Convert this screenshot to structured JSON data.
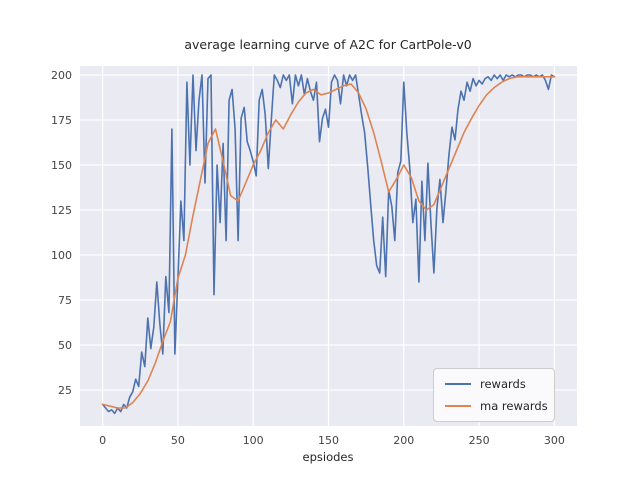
{
  "chart_data": {
    "type": "line",
    "title": "average learning curve of A2C for CartPole-v0",
    "xlabel": "epsiodes",
    "ylabel": "",
    "xlim": [
      -15,
      315
    ],
    "ylim": [
      5,
      205
    ],
    "x_ticks": [
      0,
      50,
      100,
      150,
      200,
      250,
      300
    ],
    "y_ticks": [
      25,
      50,
      75,
      100,
      125,
      150,
      175,
      200
    ],
    "grid": true,
    "legend_position": "lower right",
    "colors": {
      "axes_background": "#eaeaf2",
      "gridline": "#ffffff",
      "text": "#262626",
      "rewards": "#4c72b0",
      "ma_rewards": "#dd8452"
    },
    "series": [
      {
        "name": "rewards",
        "color": "#4c72b0",
        "x": [
          0,
          2,
          4,
          6,
          8,
          10,
          12,
          14,
          16,
          18,
          20,
          22,
          24,
          26,
          28,
          30,
          32,
          34,
          36,
          38,
          40,
          42,
          44,
          46,
          48,
          50,
          52,
          54,
          56,
          58,
          60,
          62,
          64,
          66,
          68,
          70,
          72,
          74,
          76,
          78,
          80,
          82,
          84,
          86,
          88,
          90,
          92,
          94,
          96,
          98,
          100,
          102,
          104,
          106,
          108,
          110,
          112,
          114,
          116,
          118,
          120,
          122,
          124,
          126,
          128,
          130,
          132,
          134,
          136,
          138,
          140,
          142,
          144,
          146,
          148,
          150,
          152,
          154,
          156,
          158,
          160,
          162,
          164,
          166,
          168,
          170,
          172,
          174,
          176,
          178,
          180,
          182,
          184,
          186,
          188,
          190,
          192,
          194,
          196,
          198,
          200,
          202,
          204,
          206,
          208,
          210,
          212,
          214,
          216,
          218,
          220,
          222,
          224,
          226,
          228,
          230,
          232,
          234,
          236,
          238,
          240,
          242,
          244,
          246,
          248,
          250,
          252,
          254,
          256,
          258,
          260,
          262,
          264,
          266,
          268,
          270,
          272,
          274,
          276,
          278,
          280,
          282,
          284,
          286,
          288,
          290,
          292,
          294,
          296,
          298,
          300
        ],
        "y": [
          17,
          15,
          13,
          14,
          12,
          15,
          13,
          17,
          15,
          21,
          24,
          31,
          27,
          46,
          38,
          65,
          48,
          60,
          85,
          62,
          45,
          88,
          68,
          170,
          45,
          87,
          130,
          108,
          196,
          150,
          200,
          158,
          186,
          200,
          140,
          198,
          200,
          78,
          150,
          118,
          162,
          108,
          186,
          192,
          170,
          108,
          176,
          182,
          163,
          158,
          152,
          144,
          186,
          192,
          178,
          148,
          175,
          200,
          197,
          193,
          200,
          197,
          200,
          184,
          200,
          194,
          200,
          189,
          198,
          191,
          186,
          196,
          163,
          176,
          181,
          171,
          196,
          200,
          197,
          184,
          200,
          194,
          200,
          197,
          200,
          189,
          178,
          168,
          149,
          128,
          108,
          94,
          90,
          121,
          88,
          136,
          127,
          108,
          146,
          152,
          196,
          168,
          148,
          118,
          131,
          85,
          141,
          108,
          151,
          118,
          90,
          126,
          142,
          118,
          136,
          156,
          171,
          164,
          181,
          191,
          186,
          196,
          191,
          198,
          194,
          197,
          195,
          198,
          199,
          197,
          200,
          198,
          200,
          197,
          200,
          199,
          200,
          199,
          200,
          200,
          199,
          200,
          200,
          199,
          200,
          199,
          200,
          197,
          192,
          200,
          199
        ]
      },
      {
        "name": "ma rewards",
        "color": "#dd8452",
        "x": [
          0,
          5,
          10,
          15,
          20,
          25,
          30,
          35,
          40,
          45,
          50,
          55,
          60,
          65,
          70,
          75,
          80,
          85,
          90,
          95,
          100,
          105,
          110,
          115,
          120,
          125,
          130,
          135,
          140,
          145,
          150,
          155,
          160,
          165,
          170,
          175,
          180,
          185,
          190,
          195,
          200,
          205,
          210,
          215,
          220,
          225,
          230,
          235,
          240,
          245,
          250,
          255,
          260,
          265,
          270,
          275,
          280,
          285,
          290,
          295,
          300
        ],
        "y": [
          17,
          16,
          15,
          15,
          18,
          23,
          30,
          40,
          52,
          63,
          87,
          100,
          122,
          142,
          162,
          170,
          152,
          133,
          130,
          140,
          150,
          158,
          168,
          175,
          170,
          178,
          185,
          190,
          192,
          189,
          190,
          192,
          194,
          195,
          190,
          181,
          168,
          152,
          135,
          142,
          150,
          143,
          130,
          125,
          128,
          138,
          148,
          158,
          168,
          176,
          183,
          189,
          193,
          196,
          198,
          199,
          199,
          199,
          199,
          199,
          199
        ]
      }
    ]
  }
}
